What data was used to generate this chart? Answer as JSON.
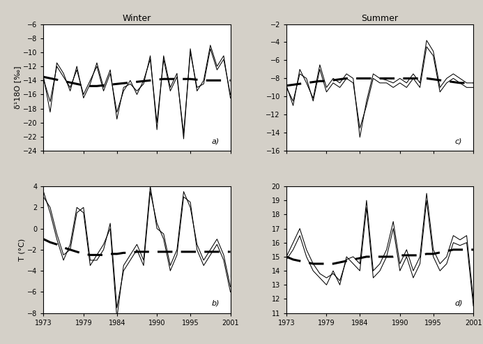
{
  "x_start": 1973,
  "x_end": 2001,
  "x_ticks": [
    1973,
    1979,
    1984,
    1990,
    1995,
    2001
  ],
  "panels": {
    "a": {
      "title": "Winter",
      "ylabel": "δ¹18O [‰]",
      "ylim": [
        -24,
        -6
      ],
      "yticks": [
        -24,
        -22,
        -20,
        -18,
        -16,
        -14,
        -12,
        -10,
        -8,
        -6
      ],
      "label": "a)"
    },
    "b": {
      "ylabel": "T (°C)",
      "ylim": [
        -8,
        4
      ],
      "yticks": [
        -8,
        -6,
        -4,
        -2,
        0,
        2,
        4
      ],
      "label": "b)"
    },
    "c": {
      "title": "Summer",
      "ylim": [
        -16,
        -2
      ],
      "yticks": [
        -16,
        -14,
        -12,
        -10,
        -8,
        -6,
        -4,
        -2
      ],
      "label": "c)"
    },
    "d": {
      "ylim": [
        11,
        20
      ],
      "yticks": [
        11,
        12,
        13,
        14,
        15,
        16,
        17,
        18,
        19,
        20
      ],
      "label": "d)"
    }
  },
  "background_color": "#d4d0c8",
  "plot_bg": "#ffffff",
  "line_color": "#000000",
  "dash_color": "#000000",
  "win_d18o": [
    -13.5,
    -18.5,
    -11.5,
    -13.0,
    -15.5,
    -12.0,
    -16.5,
    -14.5,
    -11.5,
    -15.0,
    -12.5,
    -19.5,
    -15.0,
    -14.5,
    -15.5,
    -14.5,
    -10.5,
    -21.0,
    -10.5,
    -15.0,
    -13.0,
    -22.3,
    -9.5,
    -15.5,
    -14.0,
    -9.0,
    -12.0,
    -10.5,
    -16.5
  ],
  "win_d18o_trend": [
    -13.5,
    -13.7,
    -13.9,
    -14.1,
    -14.3,
    -14.5,
    -14.7,
    -14.8,
    -14.8,
    -14.7,
    -14.6,
    -14.5,
    -14.4,
    -14.3,
    -14.2,
    -14.1,
    -14.0,
    -13.9,
    -13.8,
    -13.8,
    -13.8,
    -13.8,
    -13.8,
    -13.9,
    -14.0,
    -14.0,
    -14.0,
    -14.0,
    -14.0
  ],
  "win_d18o_b": [
    -13.8,
    -17.0,
    -12.0,
    -13.5,
    -15.0,
    -12.5,
    -16.0,
    -14.0,
    -12.0,
    -15.5,
    -13.0,
    -18.5,
    -15.5,
    -14.0,
    -16.0,
    -14.0,
    -11.0,
    -20.0,
    -11.0,
    -15.5,
    -13.5,
    -21.5,
    -10.0,
    -15.0,
    -14.5,
    -9.5,
    -12.5,
    -11.0,
    -16.0
  ],
  "win_temp": [
    3.5,
    1.5,
    -1.0,
    -3.0,
    -1.5,
    2.0,
    1.5,
    -3.5,
    -2.5,
    -1.5,
    0.0,
    -8.5,
    -3.5,
    -2.5,
    -1.5,
    -3.0,
    4.0,
    0.0,
    -0.5,
    -3.5,
    -2.0,
    3.5,
    2.0,
    -1.5,
    -3.0,
    -2.0,
    -1.0,
    -2.5,
    -5.5
  ],
  "win_temp_trend": [
    -1.0,
    -1.3,
    -1.5,
    -1.8,
    -2.0,
    -2.2,
    -2.4,
    -2.5,
    -2.5,
    -2.5,
    -2.4,
    -2.4,
    -2.3,
    -2.3,
    -2.2,
    -2.2,
    -2.2,
    -2.2,
    -2.2,
    -2.2,
    -2.2,
    -2.2,
    -2.2,
    -2.2,
    -2.2,
    -2.2,
    -2.2,
    -2.2,
    -2.2
  ],
  "win_temp_b": [
    3.0,
    2.0,
    -0.5,
    -2.5,
    -2.0,
    1.5,
    2.0,
    -3.0,
    -3.0,
    -2.0,
    0.5,
    -7.5,
    -4.0,
    -3.0,
    -2.0,
    -3.5,
    3.5,
    0.5,
    -1.0,
    -4.0,
    -2.5,
    3.0,
    2.5,
    -2.0,
    -3.5,
    -2.5,
    -1.5,
    -3.0,
    -6.0
  ],
  "sum_d18o": [
    -8.8,
    -11.0,
    -7.0,
    -8.5,
    -10.2,
    -6.5,
    -9.0,
    -8.0,
    -8.5,
    -7.5,
    -8.0,
    -14.5,
    -10.5,
    -7.5,
    -8.0,
    -8.2,
    -8.5,
    -8.0,
    -8.5,
    -7.5,
    -8.5,
    -3.8,
    -5.0,
    -9.0,
    -8.0,
    -7.5,
    -8.0,
    -8.5,
    -8.5
  ],
  "sum_d18o_trend": [
    -8.8,
    -8.7,
    -8.6,
    -8.5,
    -8.4,
    -8.3,
    -8.3,
    -8.2,
    -8.1,
    -8.0,
    -8.0,
    -8.0,
    -8.0,
    -8.0,
    -8.0,
    -8.0,
    -8.0,
    -8.0,
    -8.0,
    -8.0,
    -8.0,
    -8.0,
    -8.1,
    -8.2,
    -8.3,
    -8.4,
    -8.5,
    -8.5,
    -8.5
  ],
  "sum_d18o_b": [
    -9.0,
    -10.5,
    -7.5,
    -8.0,
    -10.5,
    -7.0,
    -9.5,
    -8.5,
    -9.0,
    -8.0,
    -8.5,
    -13.5,
    -11.0,
    -8.0,
    -8.5,
    -8.5,
    -9.0,
    -8.5,
    -9.0,
    -8.0,
    -9.0,
    -4.5,
    -5.5,
    -9.5,
    -8.5,
    -8.0,
    -8.5,
    -9.0,
    -9.0
  ],
  "sum_temp": [
    15.0,
    16.0,
    17.0,
    15.5,
    14.5,
    13.8,
    13.5,
    13.8,
    13.3,
    14.8,
    15.0,
    14.5,
    19.0,
    14.0,
    14.5,
    15.5,
    17.5,
    14.5,
    15.5,
    14.0,
    15.0,
    19.5,
    15.5,
    14.5,
    15.0,
    16.5,
    16.2,
    16.5,
    12.0
  ],
  "sum_temp_trend": [
    15.0,
    14.8,
    14.7,
    14.6,
    14.5,
    14.5,
    14.5,
    14.5,
    14.6,
    14.7,
    14.8,
    14.9,
    15.0,
    15.0,
    15.0,
    15.0,
    15.0,
    15.1,
    15.1,
    15.1,
    15.1,
    15.2,
    15.2,
    15.3,
    15.4,
    15.5,
    15.5,
    15.5,
    15.5
  ],
  "sum_temp_b": [
    14.8,
    15.5,
    16.5,
    15.0,
    14.0,
    13.5,
    13.0,
    14.0,
    13.0,
    15.0,
    14.5,
    14.0,
    18.5,
    13.5,
    14.0,
    15.0,
    17.0,
    14.0,
    15.0,
    13.5,
    14.5,
    19.0,
    15.0,
    14.0,
    14.5,
    16.0,
    15.8,
    16.0,
    11.5
  ]
}
